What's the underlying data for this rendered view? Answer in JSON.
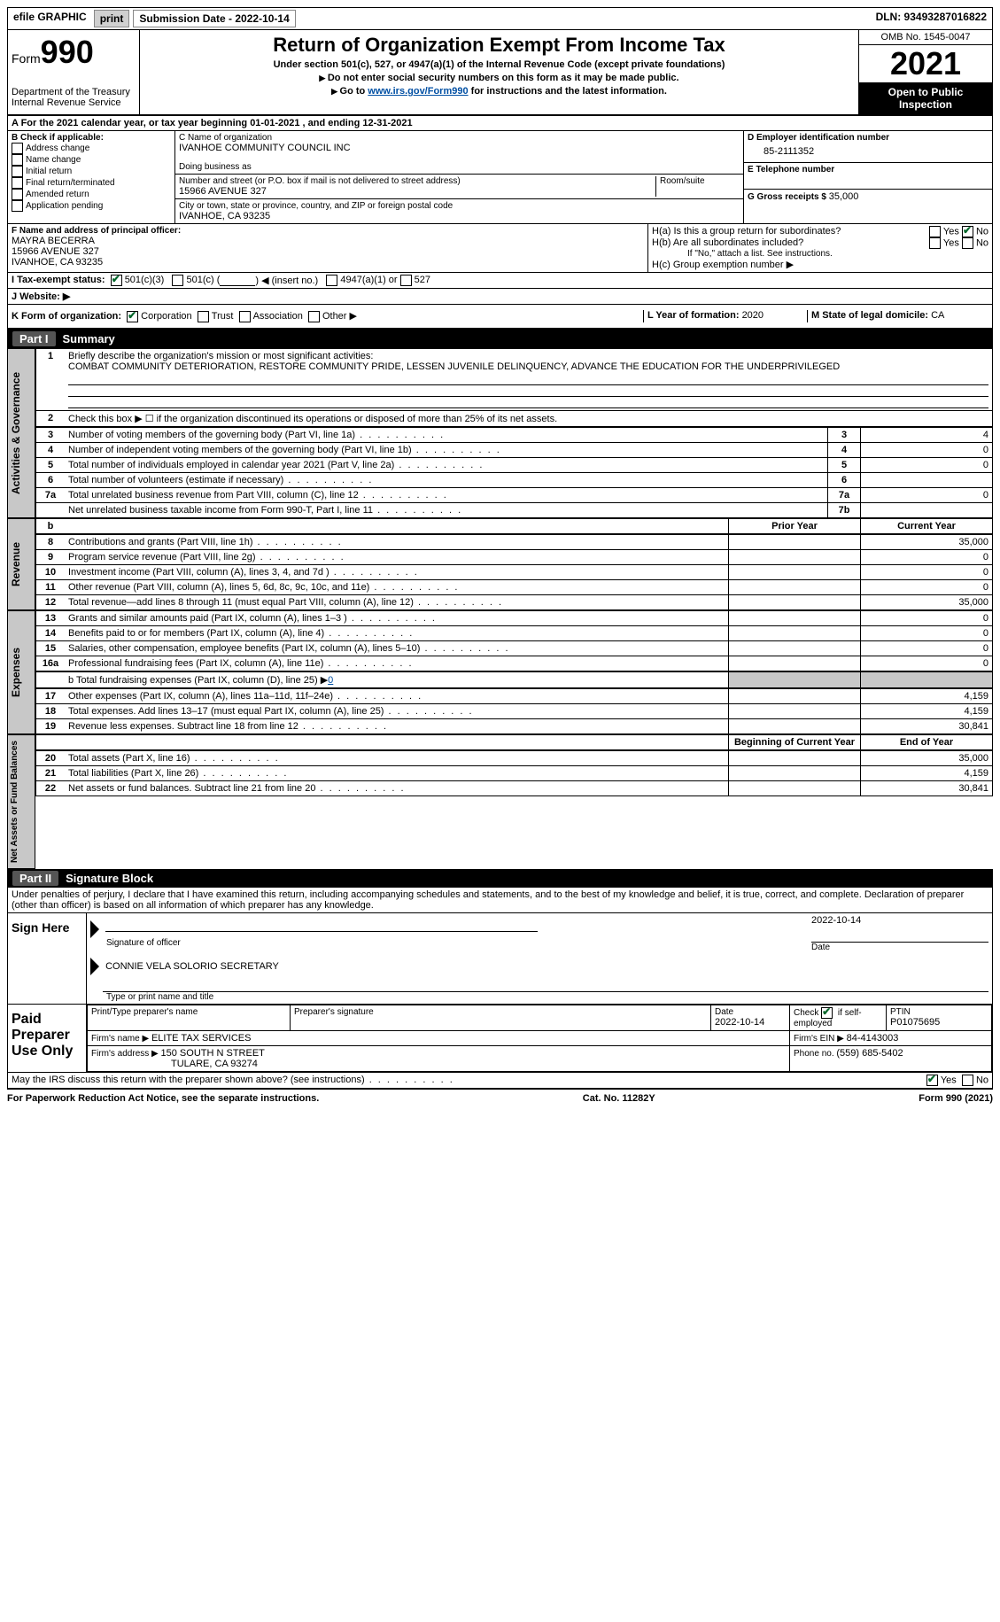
{
  "topbar": {
    "efile": "efile GRAPHIC",
    "print": "print",
    "sub_label": "Submission Date - 2022-10-14",
    "dln": "DLN: 93493287016822"
  },
  "header": {
    "form_word": "Form",
    "form_no": "990",
    "dept": "Department of the Treasury",
    "irs": "Internal Revenue Service",
    "title": "Return of Organization Exempt From Income Tax",
    "sub1": "Under section 501(c), 527, or 4947(a)(1) of the Internal Revenue Code (except private foundations)",
    "sub2": "Do not enter social security numbers on this form as it may be made public.",
    "sub3_a": "Go to ",
    "sub3_link": "www.irs.gov/Form990",
    "sub3_b": " for instructions and the latest information.",
    "omb": "OMB No. 1545-0047",
    "year": "2021",
    "open": "Open to Public Inspection"
  },
  "period": "A For the 2021 calendar year, or tax year beginning 01-01-2021   , and ending 12-31-2021",
  "B": {
    "label": "B Check if applicable:",
    "opts": [
      "Address change",
      "Name change",
      "Initial return",
      "Final return/terminated",
      "Amended return",
      "Application pending"
    ]
  },
  "C": {
    "name_label": "C Name of organization",
    "name": "IVANHOE COMMUNITY COUNCIL INC",
    "dba_label": "Doing business as",
    "addr_label": "Number and street (or P.O. box if mail is not delivered to street address)",
    "room_label": "Room/suite",
    "addr": "15966 AVENUE 327",
    "city_label": "City or town, state or province, country, and ZIP or foreign postal code",
    "city": "IVANHOE, CA  93235"
  },
  "D": {
    "label": "D Employer identification number",
    "val": "85-2111352"
  },
  "E": {
    "label": "E Telephone number",
    "val": ""
  },
  "G": {
    "label": "G Gross receipts $ ",
    "val": "35,000"
  },
  "F": {
    "label": "F  Name and address of principal officer:",
    "name": "MAYRA BECERRA",
    "addr1": "15966 AVENUE 327",
    "addr2": "IVANHOE, CA  93235"
  },
  "H": {
    "a": "H(a)  Is this a group return for subordinates?",
    "b": "H(b)  Are all subordinates included?",
    "b_note": "If \"No,\" attach a list. See instructions.",
    "c": "H(c)  Group exemption number ▶",
    "yes": "Yes",
    "no": "No"
  },
  "I": {
    "label": "I  Tax-exempt status:",
    "o1": "501(c)(3)",
    "o2a": "501(c) (",
    "o2b": ") ◀ (insert no.)",
    "o3": "4947(a)(1) or",
    "o4": "527"
  },
  "J": {
    "label": "J  Website: ▶"
  },
  "K": {
    "label": "K Form of organization:",
    "opts": [
      "Corporation",
      "Trust",
      "Association",
      "Other ▶"
    ]
  },
  "L": {
    "label": "L Year of formation: ",
    "val": "2020"
  },
  "M": {
    "label": "M State of legal domicile: ",
    "val": "CA"
  },
  "part1": {
    "bar_part": "Part I",
    "bar_title": "Summary",
    "side": {
      "ag": "Activities & Governance",
      "rev": "Revenue",
      "exp": "Expenses",
      "net": "Net Assets or Fund Balances"
    },
    "l1a": "Briefly describe the organization's mission or most significant activities:",
    "l1b": "COMBAT COMMUNITY DETERIORATION, RESTORE COMMUNITY PRIDE, LESSEN JUVENILE DELINQUENCY, ADVANCE THE EDUCATION FOR THE UNDERPRIVILEGED",
    "l2": "Check this box ▶ ☐ if the organization discontinued its operations or disposed of more than 25% of its net assets.",
    "rows_ag": [
      {
        "n": "3",
        "d": "Number of voting members of the governing body (Part VI, line 1a)",
        "box": "3",
        "v": "4"
      },
      {
        "n": "4",
        "d": "Number of independent voting members of the governing body (Part VI, line 1b)",
        "box": "4",
        "v": "0"
      },
      {
        "n": "5",
        "d": "Total number of individuals employed in calendar year 2021 (Part V, line 2a)",
        "box": "5",
        "v": "0"
      },
      {
        "n": "6",
        "d": "Total number of volunteers (estimate if necessary)",
        "box": "6",
        "v": ""
      },
      {
        "n": "7a",
        "d": "Total unrelated business revenue from Part VIII, column (C), line 12",
        "box": "7a",
        "v": "0"
      },
      {
        "n": "",
        "d": "Net unrelated business taxable income from Form 990-T, Part I, line 11",
        "box": "7b",
        "v": ""
      }
    ],
    "col_hdr": {
      "b": "b",
      "py": "Prior Year",
      "cy": "Current Year"
    },
    "rows_rev": [
      {
        "n": "8",
        "d": "Contributions and grants (Part VIII, line 1h)",
        "py": "",
        "cy": "35,000"
      },
      {
        "n": "9",
        "d": "Program service revenue (Part VIII, line 2g)",
        "py": "",
        "cy": "0"
      },
      {
        "n": "10",
        "d": "Investment income (Part VIII, column (A), lines 3, 4, and 7d )",
        "py": "",
        "cy": "0"
      },
      {
        "n": "11",
        "d": "Other revenue (Part VIII, column (A), lines 5, 6d, 8c, 9c, 10c, and 11e)",
        "py": "",
        "cy": "0"
      },
      {
        "n": "12",
        "d": "Total revenue—add lines 8 through 11 (must equal Part VIII, column (A), line 12)",
        "py": "",
        "cy": "35,000"
      }
    ],
    "rows_exp": [
      {
        "n": "13",
        "d": "Grants and similar amounts paid (Part IX, column (A), lines 1–3 )",
        "py": "",
        "cy": "0"
      },
      {
        "n": "14",
        "d": "Benefits paid to or for members (Part IX, column (A), line 4)",
        "py": "",
        "cy": "0"
      },
      {
        "n": "15",
        "d": "Salaries, other compensation, employee benefits (Part IX, column (A), lines 5–10)",
        "py": "",
        "cy": "0"
      },
      {
        "n": "16a",
        "d": "Professional fundraising fees (Part IX, column (A), line 11e)",
        "py": "",
        "cy": "0"
      }
    ],
    "l16b_a": "b  Total fundraising expenses (Part IX, column (D), line 25)  ▶",
    "l16b_v": "0",
    "rows_exp2": [
      {
        "n": "17",
        "d": "Other expenses (Part IX, column (A), lines 11a–11d, 11f–24e)",
        "py": "",
        "cy": "4,159"
      },
      {
        "n": "18",
        "d": "Total expenses. Add lines 13–17 (must equal Part IX, column (A), line 25)",
        "py": "",
        "cy": "4,159"
      },
      {
        "n": "19",
        "d": "Revenue less expenses. Subtract line 18 from line 12",
        "py": "",
        "cy": "30,841"
      }
    ],
    "net_hdr": {
      "b": "Beginning of Current Year",
      "e": "End of Year"
    },
    "rows_net": [
      {
        "n": "20",
        "d": "Total assets (Part X, line 16)",
        "b": "",
        "e": "35,000"
      },
      {
        "n": "21",
        "d": "Total liabilities (Part X, line 26)",
        "b": "",
        "e": "4,159"
      },
      {
        "n": "22",
        "d": "Net assets or fund balances. Subtract line 21 from line 20",
        "b": "",
        "e": "30,841"
      }
    ]
  },
  "part2": {
    "bar_part": "Part II",
    "bar_title": "Signature Block",
    "decl": "Under penalties of perjury, I declare that I have examined this return, including accompanying schedules and statements, and to the best of my knowledge and belief, it is true, correct, and complete. Declaration of preparer (other than officer) is based on all information of which preparer has any knowledge.",
    "sign_here": "Sign Here",
    "sig_of_officer": "Signature of officer",
    "sig_date": "2022-10-14",
    "date_label": "Date",
    "officer_name": "CONNIE VELA SOLORIO  SECRETARY",
    "type_label": "Type or print name and title",
    "paid": "Paid Preparer Use Only",
    "prep_name_label": "Print/Type preparer's name",
    "prep_sig_label": "Preparer's signature",
    "prep_date_label": "Date",
    "prep_date": "2022-10-14",
    "check_if": "Check",
    "check_if2": "if self-employed",
    "ptin_label": "PTIN",
    "ptin": "P01075695",
    "firm_name_label": "Firm's name    ▶ ",
    "firm_name": "ELITE TAX SERVICES",
    "firm_ein_label": "Firm's EIN ▶ ",
    "firm_ein": "84-4143003",
    "firm_addr_label": "Firm's address ▶ ",
    "firm_addr1": "150 SOUTH N STREET",
    "firm_addr2": "TULARE, CA  93274",
    "firm_phone_label": "Phone no. ",
    "firm_phone": "(559) 685-5402",
    "discuss": "May the IRS discuss this return with the preparer shown above? (see instructions)",
    "yes": "Yes",
    "no": "No"
  },
  "footer": {
    "left": "For Paperwork Reduction Act Notice, see the separate instructions.",
    "mid": "Cat. No. 11282Y",
    "right": "Form 990 (2021)"
  }
}
